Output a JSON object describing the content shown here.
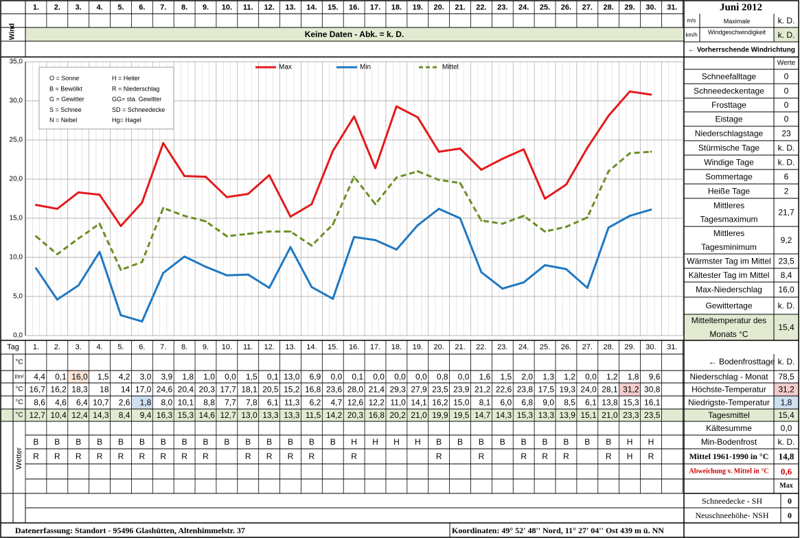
{
  "header": {
    "month_title": "Juni 2012",
    "days": [
      "1.",
      "2.",
      "3.",
      "4.",
      "5.",
      "6.",
      "7.",
      "8.",
      "9.",
      "10.",
      "11.",
      "12.",
      "13.",
      "14.",
      "15.",
      "16.",
      "17.",
      "18.",
      "19.",
      "20.",
      "21.",
      "22.",
      "23.",
      "24.",
      "25.",
      "26.",
      "27.",
      "28.",
      "29.",
      "30.",
      "31."
    ]
  },
  "wind": {
    "label": "Wind",
    "unit_ms": "m/s",
    "unit_kmh": "km/h",
    "no_data": "Keine Daten - Abk. = k. D.",
    "max_label_1": "Maximale",
    "max_label_2": "Windgeschwindigkeit",
    "max_ms": "k. D.",
    "max_kmh": "k. D.",
    "direction_label": "← Vorherrschende Windrichtung"
  },
  "legend_box": [
    [
      "O = Sonne",
      "H = Heiter"
    ],
    [
      "B = Bewölkt",
      "R = Niederschlag"
    ],
    [
      "G = Gewitter",
      "GG= sta. Gewitter"
    ],
    [
      "S = Schnee",
      "SD = Schneedecke"
    ],
    [
      "N = Nebel",
      "Hg= Hagel"
    ]
  ],
  "stats": {
    "header": "Werte",
    "items": [
      {
        "label": "Schneefalltage",
        "value": "0"
      },
      {
        "label": "Schneedeckentage",
        "value": "0"
      },
      {
        "label": "Frosttage",
        "value": "0"
      },
      {
        "label": "Eistage",
        "value": "0"
      },
      {
        "label": "Niederschlagstage",
        "value": "23"
      },
      {
        "label": "Stürmische Tage",
        "value": "k. D."
      },
      {
        "label": "Windige Tage",
        "value": "k. D."
      },
      {
        "label": "Sommertage",
        "value": "6"
      },
      {
        "label": "Heiße Tage",
        "value": "2"
      },
      {
        "label": "Mittleres Tagesmaximum",
        "label_1": "Mittleres",
        "label_2": "Tagesmaximum",
        "value": "21,7"
      },
      {
        "label": "Mittleres Tagesminimum",
        "label_1": "Mittleres",
        "label_2": "Tagesminimum",
        "value": "9,2"
      },
      {
        "label": "Wärmster Tag im Mittel",
        "value": "23,5"
      },
      {
        "label": "Kältester Tag im Mittel",
        "value": "8,4"
      },
      {
        "label": "Max-Niederschlag",
        "value": "16,0"
      },
      {
        "label": "Gewittertage",
        "value": "k. D."
      },
      {
        "label": "Mitteltemperatur des Monats °C",
        "label_1": "Mitteltemperatur des",
        "label_2": "Monats °C",
        "value": "15,4"
      }
    ]
  },
  "table": {
    "tag_label": "Tag",
    "row_units": [
      "°C",
      "l/m²",
      "°C",
      "°C",
      "°C"
    ],
    "boden_values": [
      "",
      "",
      "",
      "",
      "",
      "",
      "",
      "",
      "",
      "",
      "",
      "",
      "",
      "",
      "",
      "",
      "",
      "",
      "",
      "",
      "",
      "",
      "",
      "",
      "",
      "",
      "",
      "",
      "",
      "",
      ""
    ],
    "niederschlag": [
      "4,4",
      "0,1",
      "16,0",
      "1,5",
      "4,2",
      "3,0",
      "3,9",
      "1,8",
      "1,0",
      "0,0",
      "1,5",
      "0,1",
      "13,0",
      "6,9",
      "0,0",
      "0,1",
      "0,0",
      "0,0",
      "0,0",
      "0,8",
      "0,0",
      "1,6",
      "1,5",
      "2,0",
      "1,3",
      "1,2",
      "0,0",
      "1,2",
      "1,8",
      "9,6",
      ""
    ],
    "hoechste": [
      "16,7",
      "16,2",
      "18,3",
      "18",
      "14",
      "17,0",
      "24,6",
      "20,4",
      "20,3",
      "17,7",
      "18,1",
      "20,5",
      "15,2",
      "16,8",
      "23,6",
      "28,0",
      "21,4",
      "29,3",
      "27,9",
      "23,5",
      "23,9",
      "21,2",
      "22,6",
      "23,8",
      "17,5",
      "19,3",
      "24,0",
      "28,1",
      "31,2",
      "30,8",
      ""
    ],
    "niedrigste": [
      "8,6",
      "4,6",
      "6,4",
      "10,7",
      "2,6",
      "1,8",
      "8,0",
      "10,1",
      "8,8",
      "7,7",
      "7,8",
      "6,1",
      "11,3",
      "6,2",
      "4,7",
      "12,6",
      "12,2",
      "11,0",
      "14,1",
      "16,2",
      "15,0",
      "8,1",
      "6,0",
      "6,8",
      "9,0",
      "8,5",
      "6,1",
      "13,8",
      "15,3",
      "16,1",
      ""
    ],
    "mittel": [
      "12,7",
      "10,4",
      "12,4",
      "14,3",
      "8,4",
      "9,4",
      "16,3",
      "15,3",
      "14,6",
      "12,7",
      "13,0",
      "13,3",
      "13,3",
      "11,5",
      "14,2",
      "20,3",
      "16,8",
      "20,2",
      "21,0",
      "19,9",
      "19,5",
      "14,7",
      "14,3",
      "15,3",
      "13,3",
      "13,9",
      "15,1",
      "21,0",
      "23,3",
      "23,5",
      ""
    ],
    "wetter_label": "Wetter",
    "wetter_row1": [
      "B",
      "B",
      "B",
      "B",
      "B",
      "B",
      "B",
      "B",
      "B",
      "B",
      "B",
      "B",
      "B",
      "B",
      "B",
      "H",
      "H",
      "H",
      "H",
      "B",
      "B",
      "B",
      "B",
      "B",
      "B",
      "B",
      "B",
      "B",
      "H",
      "H",
      ""
    ],
    "wetter_row2": [
      "R",
      "R",
      "R",
      "R",
      "R",
      "R",
      "R",
      "R",
      "R",
      "",
      "R",
      "R",
      "R",
      "R",
      "",
      "R",
      "",
      "",
      "",
      "R",
      "",
      "R",
      "",
      "R",
      "R",
      "R",
      "",
      "R",
      "H",
      "R",
      ""
    ]
  },
  "right_summary": {
    "bodenfrost_label": "← Bodenfrosttage",
    "bodenfrost_value": "k. D.",
    "items": [
      {
        "label": "Niederschlag - Monat",
        "value": "78,5"
      },
      {
        "label": "Höchste-Temperatur",
        "value": "31,2"
      },
      {
        "label": "Niedrigste-Temperatur",
        "value": "1,8"
      },
      {
        "label": "Tagesmittel",
        "value": "15,4"
      },
      {
        "label": "Kältesumme",
        "value": "0,0"
      },
      {
        "label": "Min-Bodenfrost",
        "value": "k. D."
      }
    ],
    "mittel_1961_label": "Mittel 1961-1990 in °C",
    "mittel_1961_value": "14,8",
    "abweichung_label": "Abweichung v. Mittel in °C",
    "abweichung_value": "0,6",
    "max_label": "Max",
    "schneedecke_label": "Schneedecke -   SH",
    "schneedecke_value": "0",
    "neuschnee_label": "Neuschneehöhe- NSH",
    "neuschnee_value": "0"
  },
  "footer": {
    "left": "Datenerfassung:  Standort -  95496  Glashütten, Altenhimmelstr. 37",
    "right": "Koordinaten:  49° 52' 48'' Nord,   11° 27' 04'' Ost   439 m ü. NN"
  },
  "colors": {
    "max": "#e31a1c",
    "min": "#1f78c1",
    "mittel": "#6b8e23",
    "header_bg": "#e2ebd2",
    "max_highlight": "#f4cccc",
    "min_highlight": "#cfe0f3",
    "precip_highlight": "#fbe5d6"
  },
  "chart_data": {
    "type": "line",
    "title": "",
    "xlabel": "Tag",
    "ylabel": "",
    "x": [
      1,
      2,
      3,
      4,
      5,
      6,
      7,
      8,
      9,
      10,
      11,
      12,
      13,
      14,
      15,
      16,
      17,
      18,
      19,
      20,
      21,
      22,
      23,
      24,
      25,
      26,
      27,
      28,
      29,
      30
    ],
    "ylim": [
      0,
      35
    ],
    "yticks": [
      "0,0",
      "5,0",
      "10,0",
      "15,0",
      "20,0",
      "25,0",
      "30,0",
      "35,0"
    ],
    "grid": true,
    "legend_position": "top",
    "series": [
      {
        "name": "Max",
        "color": "#e31a1c",
        "style": "solid",
        "values": [
          16.7,
          16.2,
          18.3,
          18.0,
          14.0,
          17.0,
          24.6,
          20.4,
          20.3,
          17.7,
          18.1,
          20.5,
          15.2,
          16.8,
          23.6,
          28.0,
          21.4,
          29.3,
          27.9,
          23.5,
          23.9,
          21.2,
          22.6,
          23.8,
          17.5,
          19.3,
          24.0,
          28.1,
          31.2,
          30.8
        ]
      },
      {
        "name": "Min",
        "color": "#1f78c1",
        "style": "solid",
        "values": [
          8.6,
          4.6,
          6.4,
          10.7,
          2.6,
          1.8,
          8.0,
          10.1,
          8.8,
          7.7,
          7.8,
          6.1,
          11.3,
          6.2,
          4.7,
          12.6,
          12.2,
          11.0,
          14.1,
          16.2,
          15.0,
          8.1,
          6.0,
          6.8,
          9.0,
          8.5,
          6.1,
          13.8,
          15.3,
          16.1
        ]
      },
      {
        "name": "Mittel",
        "color": "#6b8e23",
        "style": "dashed",
        "values": [
          12.7,
          10.4,
          12.4,
          14.3,
          8.4,
          9.4,
          16.3,
          15.3,
          14.6,
          12.7,
          13.0,
          13.3,
          13.3,
          11.5,
          14.2,
          20.3,
          16.8,
          20.2,
          21.0,
          19.9,
          19.5,
          14.7,
          14.3,
          15.3,
          13.3,
          13.9,
          15.1,
          21.0,
          23.3,
          23.5
        ]
      }
    ]
  }
}
